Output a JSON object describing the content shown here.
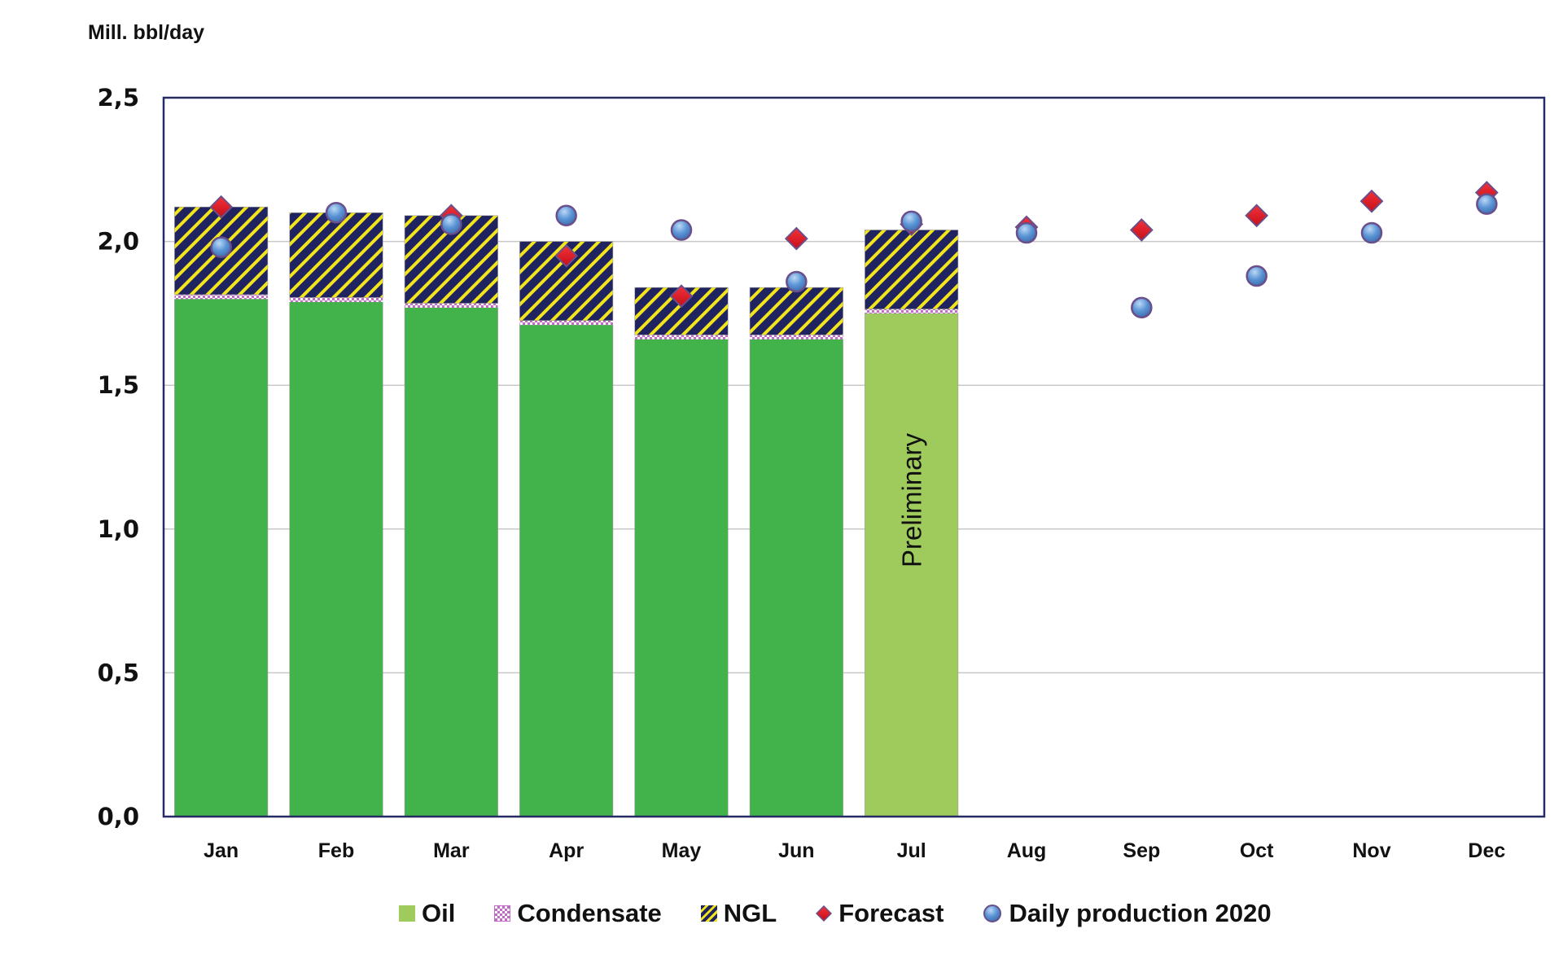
{
  "chart_data": {
    "type": "bar",
    "title": "",
    "ylabel": "Mill. bbl/day",
    "xlabel": "",
    "ylim": [
      0,
      2.5
    ],
    "ytick_step": 0.5,
    "ytick_labels": [
      "0,0",
      "0,5",
      "1,0",
      "1,5",
      "2,0",
      "2,5"
    ],
    "grid": true,
    "stacked": true,
    "categories": [
      "Jan",
      "Feb",
      "Mar",
      "Apr",
      "May",
      "Jun",
      "Jul",
      "Aug",
      "Sep",
      "Oct",
      "Nov",
      "Dec"
    ],
    "series": [
      {
        "name": "Oil",
        "kind": "bar",
        "color": "#41b34a",
        "preliminary_color": "#9ecb5b",
        "values": [
          1.8,
          1.79,
          1.77,
          1.71,
          1.66,
          1.66,
          1.75,
          null,
          null,
          null,
          null,
          null
        ]
      },
      {
        "name": "Condensate",
        "kind": "bar",
        "color": "#c36ac8",
        "values": [
          0.015,
          0.015,
          0.015,
          0.015,
          0.015,
          0.015,
          0.015,
          null,
          null,
          null,
          null,
          null
        ]
      },
      {
        "name": "NGL",
        "kind": "bar",
        "color": "#1f2461",
        "stripe_color": "#f3e51b",
        "values": [
          0.305,
          0.295,
          0.305,
          0.275,
          0.165,
          0.165,
          0.275,
          null,
          null,
          null,
          null,
          null
        ]
      },
      {
        "name": "Forecast",
        "kind": "marker",
        "marker": "diamond",
        "color": "#e3141f",
        "values": [
          2.12,
          null,
          2.09,
          1.95,
          1.81,
          2.01,
          2.06,
          2.05,
          2.04,
          2.09,
          2.14,
          2.17
        ]
      },
      {
        "name": "Daily production 2020",
        "kind": "marker",
        "marker": "circle",
        "color": "#5b95d6",
        "values": [
          1.98,
          2.1,
          2.06,
          2.09,
          2.04,
          1.86,
          2.07,
          2.03,
          1.77,
          1.88,
          2.03,
          2.13
        ]
      }
    ],
    "annotations": [
      {
        "category": "Jul",
        "text": "Preliminary",
        "orientation": "vertical"
      }
    ],
    "preliminary_category": "Jul",
    "legend_position": "bottom"
  },
  "legend": {
    "items": [
      "Oil",
      "Condensate",
      "NGL",
      "Forecast",
      "Daily production 2020"
    ]
  }
}
